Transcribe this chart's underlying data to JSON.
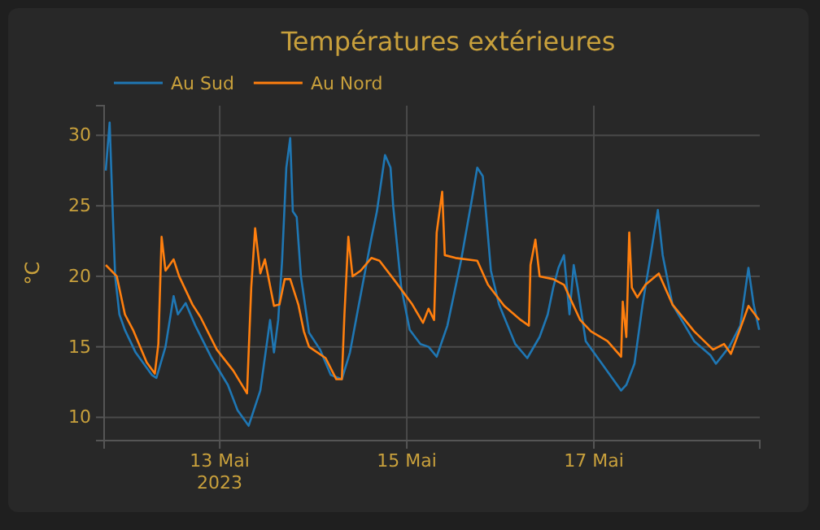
{
  "chart_data": {
    "type": "line",
    "title": "Températures extérieures",
    "ylabel": "°C",
    "legend": "top left",
    "grid": true,
    "xlim": [
      "2023-05-11T18:20",
      "2023-05-18T18:35"
    ],
    "xticks": [
      {
        "value": "2023-05-13",
        "label": "13 Mai\n2023"
      },
      {
        "value": "2023-05-15",
        "label": "15 Mai"
      },
      {
        "value": "2023-05-17",
        "label": "17 Mai"
      }
    ],
    "ylim": [
      8.35,
      32.1
    ],
    "yticks": [
      10,
      15,
      20,
      25,
      30
    ],
    "series": [
      {
        "name": "Au Sud",
        "color": "#1f77b4",
        "x": [
          "2023-05-11T18:45",
          "2023-05-11T19:45",
          "2023-05-11T20:35",
          "2023-05-11T21:10",
          "2023-05-11T22:15",
          "2023-05-11T23:40",
          "2023-05-12T02:25",
          "2023-05-12T06:35",
          "2023-05-12T07:45",
          "2023-05-12T10:05",
          "2023-05-12T12:10",
          "2023-05-12T13:15",
          "2023-05-12T15:15",
          "2023-05-12T17:45",
          "2023-05-12T21:55",
          "2023-05-13T02:05",
          "2023-05-13T04:35",
          "2023-05-13T07:25",
          "2023-05-13T10:25",
          "2023-05-13T12:55",
          "2023-05-13T13:55",
          "2023-05-13T15:00",
          "2023-05-13T16:00",
          "2023-05-13T17:05",
          "2023-05-13T18:05",
          "2023-05-13T18:45",
          "2023-05-13T19:45",
          "2023-05-13T20:50",
          "2023-05-13T22:55",
          "2023-05-14T01:45",
          "2023-05-14T04:30",
          "2023-05-14T07:20",
          "2023-05-14T09:25",
          "2023-05-14T11:30",
          "2023-05-14T14:55",
          "2023-05-14T16:20",
          "2023-05-14T18:25",
          "2023-05-14T19:50",
          "2023-05-14T20:30",
          "2023-05-14T22:35",
          "2023-05-15T00:45",
          "2023-05-15T03:30",
          "2023-05-15T05:35",
          "2023-05-15T07:40",
          "2023-05-15T10:25",
          "2023-05-15T13:55",
          "2023-05-15T16:40",
          "2023-05-15T18:05",
          "2023-05-15T19:30",
          "2023-05-15T20:10",
          "2023-05-15T21:35",
          "2023-05-15T23:40",
          "2023-05-16T03:50",
          "2023-05-16T06:55",
          "2023-05-16T10:05",
          "2023-05-16T12:10",
          "2023-05-16T13:35",
          "2023-05-16T14:55",
          "2023-05-16T16:20",
          "2023-05-16T17:45",
          "2023-05-16T18:50",
          "2023-05-16T19:50",
          "2023-05-16T21:55",
          "2023-05-17T02:05",
          "2023-05-17T04:55",
          "2023-05-17T07:00",
          "2023-05-17T08:20",
          "2023-05-17T10:25",
          "2023-05-17T12:30",
          "2023-05-17T14:35",
          "2023-05-17T16:25",
          "2023-05-17T17:40",
          "2023-05-17T20:10",
          "2023-05-18T01:45",
          "2023-05-18T05:55",
          "2023-05-18T07:20",
          "2023-05-18T10:45",
          "2023-05-18T13:35",
          "2023-05-18T15:40",
          "2023-05-18T17:00",
          "2023-05-18T18:25"
        ],
        "values": [
          27.5,
          30.9,
          24.2,
          20,
          17.3,
          16.2,
          14.6,
          13,
          12.8,
          15,
          18.6,
          17.3,
          18.1,
          16.5,
          14.2,
          12.3,
          10.5,
          9.4,
          11.9,
          16.9,
          14.6,
          16.9,
          21.1,
          27.7,
          29.8,
          24.6,
          24.2,
          20,
          16,
          14.8,
          13,
          12.7,
          14.6,
          17.7,
          22.7,
          24.6,
          28.6,
          27.7,
          25,
          19.2,
          16.2,
          15.2,
          15,
          14.3,
          16.5,
          21.1,
          25.4,
          27.7,
          27.1,
          25,
          20.4,
          18,
          15.2,
          14.2,
          15.7,
          17.3,
          19.2,
          20.6,
          21.5,
          17.3,
          20.8,
          19.2,
          15.4,
          13.8,
          12.7,
          11.9,
          12.3,
          13.8,
          18,
          21.5,
          24.7,
          21.5,
          18,
          15.4,
          14.4,
          13.8,
          15,
          16.5,
          20.6,
          18,
          16.2
        ]
      },
      {
        "name": "Au Nord",
        "color": "#ff7f0e",
        "x": [
          "2023-05-11T18:45",
          "2023-05-11T21:35",
          "2023-05-11T23:40",
          "2023-05-12T01:45",
          "2023-05-12T05:15",
          "2023-05-12T07:20",
          "2023-05-12T08:15",
          "2023-05-12T09:05",
          "2023-05-12T10:05",
          "2023-05-12T12:10",
          "2023-05-12T13:35",
          "2023-05-12T17:00",
          "2023-05-12T19:05",
          "2023-05-12T23:15",
          "2023-05-13T03:30",
          "2023-05-13T07:00",
          "2023-05-13T08:05",
          "2023-05-13T09:05",
          "2023-05-13T10:25",
          "2023-05-13T11:35",
          "2023-05-13T13:55",
          "2023-05-13T15:20",
          "2023-05-13T16:40",
          "2023-05-13T18:05",
          "2023-05-13T20:10",
          "2023-05-13T21:35",
          "2023-05-13T22:55",
          "2023-05-14T03:10",
          "2023-05-14T05:55",
          "2023-05-14T07:20",
          "2023-05-14T08:00",
          "2023-05-14T09:00",
          "2023-05-14T10:05",
          "2023-05-14T12:10",
          "2023-05-14T14:55",
          "2023-05-14T17:00",
          "2023-05-14T21:10",
          "2023-05-15T01:25",
          "2023-05-15T04:10",
          "2023-05-15T05:35",
          "2023-05-15T07:00",
          "2023-05-15T07:40",
          "2023-05-15T09:05",
          "2023-05-15T09:45",
          "2023-05-15T12:30",
          "2023-05-15T18:05",
          "2023-05-15T20:50",
          "2023-05-16T01:00",
          "2023-05-16T05:15",
          "2023-05-16T07:20",
          "2023-05-16T07:45",
          "2023-05-16T09:00",
          "2023-05-16T10:05",
          "2023-05-16T13:35",
          "2023-05-16T16:20",
          "2023-05-16T20:30",
          "2023-05-16T23:15",
          "2023-05-17T03:30",
          "2023-05-17T07:00",
          "2023-05-17T07:25",
          "2023-05-17T08:20",
          "2023-05-17T09:05",
          "2023-05-17T09:45",
          "2023-05-17T11:10",
          "2023-05-17T13:15",
          "2023-05-17T16:40",
          "2023-05-17T20:10",
          "2023-05-18T01:45",
          "2023-05-18T06:35",
          "2023-05-18T09:25",
          "2023-05-18T11:10",
          "2023-05-18T13:35",
          "2023-05-18T15:40",
          "2023-05-18T18:25"
        ],
        "values": [
          20.8,
          20,
          17.3,
          16.2,
          13.9,
          13.1,
          15.2,
          22.8,
          20.4,
          21.2,
          20,
          18,
          17.1,
          14.8,
          13.3,
          11.7,
          19.2,
          23.4,
          20.2,
          21.2,
          17.9,
          18,
          19.8,
          19.8,
          18,
          16.1,
          15,
          14.2,
          12.7,
          12.7,
          17.3,
          22.8,
          20,
          20.4,
          21.3,
          21.1,
          19.6,
          18,
          16.7,
          17.7,
          16.9,
          23.1,
          26,
          21.5,
          21.3,
          21.1,
          19.4,
          17.9,
          16.9,
          16.5,
          20.8,
          22.6,
          20,
          19.8,
          19.4,
          16.9,
          16.1,
          15.4,
          14.3,
          18.2,
          15.7,
          23.1,
          19.2,
          18.5,
          19.4,
          20.2,
          18,
          16.1,
          14.8,
          15.2,
          14.5,
          16.3,
          17.9,
          16.9
        ]
      }
    ]
  }
}
